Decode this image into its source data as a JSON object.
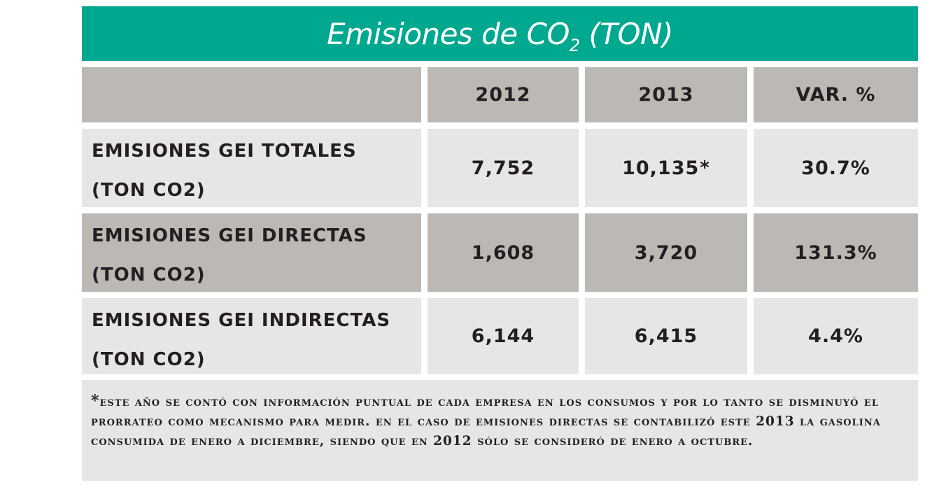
{
  "title": {
    "main": "Emisiones de CO",
    "sub": "2",
    "unit": " (TON)"
  },
  "table": {
    "headers": [
      "",
      "2012",
      "2013",
      "VAR. %"
    ],
    "rows": [
      {
        "label_line1": "EMISIONES GEI TOTALES",
        "label_line2": "(TON CO2)",
        "v2012": "7,752",
        "v2013": "10,135",
        "v2013_mark": "*",
        "var": "30.7%"
      },
      {
        "label_line1": "EMISIONES GEI DIRECTAS",
        "label_line2": "(TON CO2)",
        "v2012": "1,608",
        "v2013": "3,720",
        "var": "131.3%"
      },
      {
        "label_line1": "EMISIONES GEI INDIRECTAS",
        "label_line2": "(TON CO2)",
        "v2012": "6,144",
        "v2013": "6,415",
        "var": "4.4%"
      }
    ]
  },
  "footnote": {
    "mark": "*",
    "text": "ESTE AÑO SE CONTÓ CON INFORMACIÓN PUNTUAL DE CADA EMPRESA EN LOS CONSUMOS Y POR LO TANTO SE DISMINUYÓ EL PRORRATEO COMO MECANISMO PARA MEDIR. EN EL CASO DE EMISIONES DIRECTAS SE CONTABILIZÓ  ESTE 2013 LA GASOLINA CONSUMIDA DE ENERO A DICIEMBRE, SIENDO QUE EN 2012 SÓLO SE CONSIDERÓ DE ENERO A OCTUBRE."
  },
  "colors": {
    "title_bg": "#00a88f",
    "header_bg": "#bcb8b4",
    "cell_light": "#e8e6e4",
    "cell_dark": "#bcb8b4",
    "text": "#231f20"
  }
}
